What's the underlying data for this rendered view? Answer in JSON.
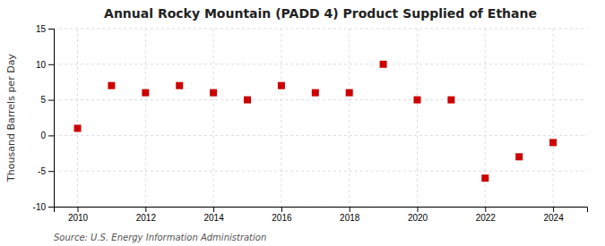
{
  "chart_data": {
    "type": "scatter",
    "title": "Annual Rocky Mountain (PADD 4) Product Supplied of Ethane",
    "ylabel": "Thousand Barrels per Day",
    "annotations": [
      "Source: U.S. Energy Information Administration"
    ],
    "x": [
      2010,
      2011,
      2012,
      2013,
      2014,
      2015,
      2016,
      2017,
      2018,
      2019,
      2020,
      2021,
      2022,
      2023,
      2024
    ],
    "values": [
      1,
      7,
      6,
      7,
      6,
      5,
      7,
      6,
      6,
      10,
      5,
      5,
      -6,
      -3,
      -1
    ],
    "color": "#cc0000",
    "marker": "square",
    "xlim": [
      2009.3,
      2025.0
    ],
    "xticks": [
      2010,
      2012,
      2014,
      2016,
      2018,
      2020,
      2022,
      2024
    ],
    "ylim": [
      -10,
      15
    ],
    "yticks": [
      -10,
      -5,
      0,
      5,
      10,
      15
    ],
    "grid": true
  }
}
